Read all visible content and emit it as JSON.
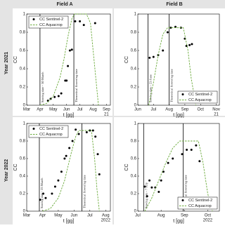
{
  "panel_labels": {
    "columns": [
      "Field A",
      "Field B"
    ],
    "rows": [
      "Year 2021",
      "Year 2022"
    ]
  },
  "chart_data": [
    {
      "type": "line",
      "ylabel": "CC",
      "xlabel": "t [gg]",
      "x_year": "21",
      "xlim": [
        3,
        9.3
      ],
      "ylim": [
        0,
        1
      ],
      "xticks": [
        {
          "value": 3,
          "label": "Mar"
        },
        {
          "value": 4,
          "label": "Apr"
        },
        {
          "value": 5,
          "label": "May"
        },
        {
          "value": 6,
          "label": "Jun"
        },
        {
          "value": 7,
          "label": "Jul"
        },
        {
          "value": 8,
          "label": "Aug"
        },
        {
          "value": 9,
          "label": "Sep"
        }
      ],
      "yticks": [
        0,
        0.2,
        0.4,
        0.6,
        0.8,
        1
      ],
      "legend": "upper left",
      "vlines": [
        {
          "x": 4.0,
          "label": "Sowing date - 30 March"
        },
        {
          "x": 6.55,
          "label": "Theoretical flowering date"
        }
      ],
      "series": [
        {
          "name": "CC Sentinel-2",
          "type": "scatter",
          "color": "#000000",
          "x": [
            4.6,
            4.8,
            5.1,
            5.4,
            5.6,
            5.9,
            6.0,
            6.1,
            6.25,
            6.4,
            6.65,
            7.0,
            7.3,
            8.15
          ],
          "values": [
            0.05,
            0.07,
            0.09,
            0.1,
            0.13,
            0.27,
            0.27,
            0.43,
            0.6,
            0.61,
            0.92,
            0.92,
            0.88,
            0.9
          ]
        },
        {
          "name": "CC Aquacrop",
          "type": "line",
          "color": "#6aaa3a",
          "x": [
            4.0,
            4.5,
            5.0,
            5.5,
            5.8,
            6.1,
            6.4,
            6.6,
            7.5,
            7.8,
            8.0,
            8.2,
            8.4
          ],
          "values": [
            0,
            0.02,
            0.1,
            0.3,
            0.5,
            0.75,
            0.95,
            1,
            1,
            0.9,
            0.6,
            0.3,
            0
          ]
        }
      ]
    },
    {
      "type": "line",
      "ylabel": "CC",
      "xlabel": "t [gg]",
      "x_year": "21",
      "xlim": [
        6,
        11.2
      ],
      "ylim": [
        0,
        1
      ],
      "xticks": [
        {
          "value": 6,
          "label": "Jun"
        },
        {
          "value": 7,
          "label": "Jul"
        },
        {
          "value": 8,
          "label": "Aug"
        },
        {
          "value": 9,
          "label": "Sep"
        },
        {
          "value": 10,
          "label": "Oct"
        },
        {
          "value": 11,
          "label": "Nov"
        }
      ],
      "yticks": [
        0,
        0.2,
        0.4,
        0.6,
        0.8,
        1
      ],
      "legend": "lower right",
      "vlines": [
        {
          "x": 6.65,
          "label": "Sowing date - 23 June"
        },
        {
          "x": 8.0,
          "label": "Theoretical flowering date"
        }
      ],
      "series": [
        {
          "name": "CC Sentinel-2",
          "type": "scatter",
          "color": "#000000",
          "x": [
            6.75,
            7.0,
            7.3,
            7.6,
            7.9,
            8.1,
            8.4,
            8.75,
            9.0,
            9.1,
            9.3,
            9.45
          ],
          "values": [
            0.52,
            0.53,
            0.55,
            0.6,
            0.8,
            0.85,
            0.86,
            0.85,
            0.73,
            0.65,
            0.66,
            0.67
          ]
        },
        {
          "name": "CC Aquacrop",
          "type": "line",
          "color": "#6aaa3a",
          "x": [
            6.7,
            7.0,
            7.3,
            7.6,
            7.9,
            8.9,
            9.2,
            9.4,
            9.7
          ],
          "values": [
            0,
            0.25,
            0.55,
            0.78,
            0.85,
            0.85,
            0.6,
            0.3,
            0
          ]
        }
      ]
    },
    {
      "type": "line",
      "ylabel": "CC",
      "xlabel": "t [gg]",
      "x_year": "2022",
      "xlim": [
        3,
        8.3
      ],
      "ylim": [
        0,
        1
      ],
      "xticks": [
        {
          "value": 3,
          "label": "Mar"
        },
        {
          "value": 4,
          "label": "Apr"
        },
        {
          "value": 5,
          "label": "May"
        },
        {
          "value": 6,
          "label": "Jun"
        },
        {
          "value": 7,
          "label": "Jul"
        },
        {
          "value": 8,
          "label": "Aug"
        }
      ],
      "yticks": [
        0,
        0.2,
        0.4,
        0.6,
        0.8,
        1
      ],
      "legend": "upper left",
      "vlines": [
        {
          "x": 3.8,
          "label": "Sowing date - 25 March"
        },
        {
          "x": 6.5,
          "label": "Theoretical flowering date"
        }
      ],
      "series": [
        {
          "name": "CC Sentinel-2",
          "type": "scatter",
          "color": "#000000",
          "x": [
            3.85,
            4.05,
            4.2,
            4.6,
            4.8,
            5.0,
            5.2,
            5.4,
            5.5,
            5.7,
            5.9,
            6.1,
            6.3,
            6.8,
            7.0,
            7.2,
            7.35,
            7.5,
            7.6
          ],
          "values": [
            0.13,
            0.2,
            0.15,
            0.2,
            0.28,
            0.35,
            0.45,
            0.6,
            0.63,
            0.72,
            0.8,
            0.93,
            0.88,
            0.9,
            0.92,
            0.92,
            0.85,
            0.65,
            0.42
          ]
        },
        {
          "name": "CC Aquacrop",
          "type": "line",
          "color": "#6aaa3a",
          "x": [
            4.0,
            4.5,
            5.0,
            5.4,
            5.8,
            6.1,
            6.3,
            7.1,
            7.3,
            7.45,
            7.6
          ],
          "values": [
            0,
            0.03,
            0.15,
            0.35,
            0.65,
            0.85,
            0.92,
            0.92,
            0.6,
            0.25,
            0
          ]
        }
      ]
    },
    {
      "type": "line",
      "ylabel": "CC",
      "xlabel": "t [gg]",
      "x_year": "2022",
      "xlim": [
        7,
        10.5
      ],
      "ylim": [
        0,
        1
      ],
      "xticks": [
        {
          "value": 7,
          "label": "Jul"
        },
        {
          "value": 8,
          "label": "Aug"
        },
        {
          "value": 9,
          "label": "Sep"
        },
        {
          "value": 10,
          "label": "Oct"
        }
      ],
      "yticks": [
        0,
        0.2,
        0.4,
        0.6,
        0.8,
        1
      ],
      "legend": "lower right",
      "vlines": [
        {
          "x": 7.25,
          "label": "Sowing date - 7 July"
        },
        {
          "x": 8.95,
          "label": "Theoretical flowering date"
        }
      ],
      "series": [
        {
          "name": "CC Sentinel-2",
          "type": "scatter",
          "color": "#000000",
          "x": [
            7.3,
            7.4,
            7.5,
            7.6,
            7.75,
            7.9,
            8.0,
            8.1,
            8.3,
            8.5,
            8.9,
            9.1,
            9.3,
            9.5,
            9.65
          ],
          "values": [
            0.28,
            0.17,
            0.35,
            0.27,
            0.27,
            0.22,
            0.35,
            0.45,
            0.55,
            0.6,
            0.65,
            0.7,
            0.7,
            0.75,
            0.57
          ]
        },
        {
          "name": "CC Aquacrop",
          "type": "line",
          "color": "#6aaa3a",
          "x": [
            7.3,
            7.6,
            7.9,
            8.2,
            8.5,
            8.8,
            9.6,
            9.8,
            10.0,
            10.2
          ],
          "values": [
            0,
            0.15,
            0.35,
            0.55,
            0.72,
            0.8,
            0.8,
            0.55,
            0.2,
            0
          ]
        }
      ]
    }
  ]
}
